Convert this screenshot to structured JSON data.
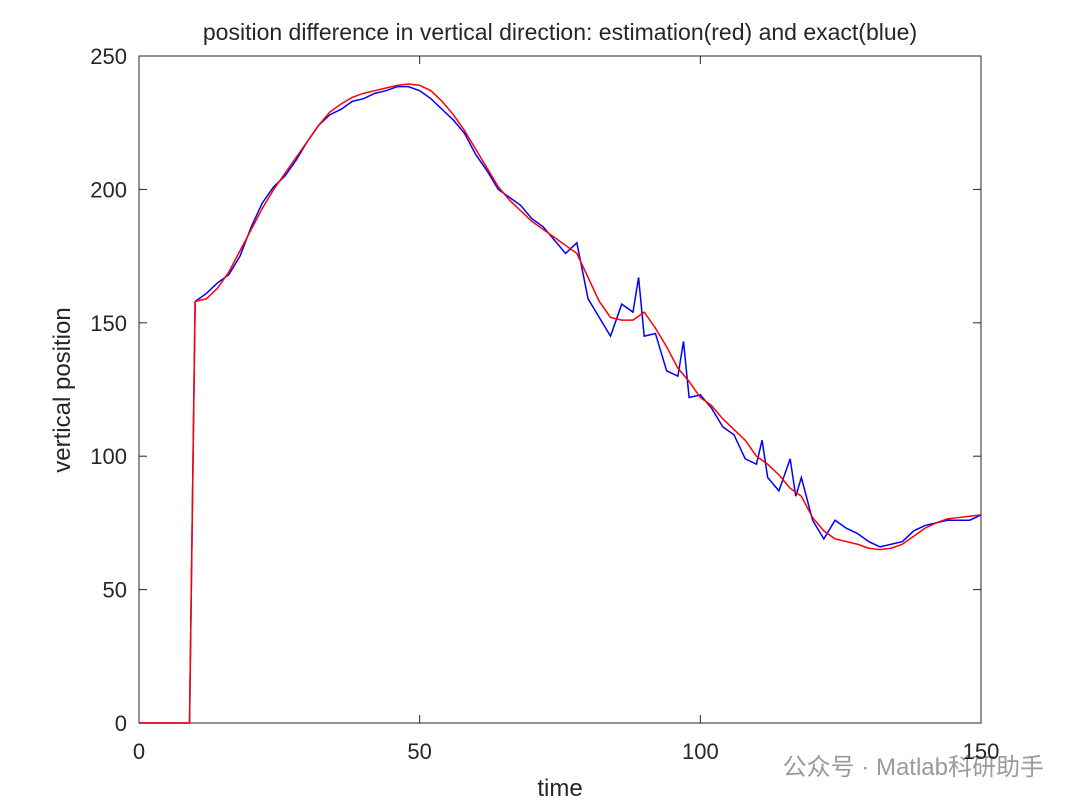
{
  "chart_data": {
    "type": "line",
    "title": "position difference in vertical direction: estimation(red) and exact(blue)",
    "x_label": "time",
    "y_label": "vertical position",
    "xlim": [
      0,
      150
    ],
    "ylim": [
      0,
      250
    ],
    "xticks": [
      0,
      50,
      100,
      150
    ],
    "yticks": [
      0,
      50,
      100,
      150,
      200,
      250
    ],
    "grid": false,
    "series": [
      {
        "color": "#0000ff",
        "x": [
          0,
          2,
          4,
          6,
          8,
          9,
          10,
          12,
          14,
          16,
          18,
          20,
          22,
          24,
          26,
          28,
          30,
          32,
          34,
          36,
          38,
          40,
          42,
          44,
          46,
          48,
          50,
          52,
          54,
          56,
          58,
          60,
          62,
          64,
          66,
          68,
          70,
          72,
          74,
          76,
          78,
          80,
          82,
          84,
          86,
          88,
          89,
          90,
          92,
          94,
          96,
          97,
          98,
          100,
          102,
          104,
          106,
          108,
          110,
          111,
          112,
          114,
          116,
          117,
          118,
          120,
          122,
          124,
          126,
          128,
          130,
          132,
          134,
          136,
          138,
          140,
          142,
          144,
          146,
          148,
          150
        ],
        "values": [
          0,
          0,
          0,
          0,
          0,
          0,
          158,
          161,
          165,
          168,
          175,
          186,
          195,
          201,
          205,
          211,
          218,
          224,
          228,
          230,
          233,
          234,
          236,
          237,
          238.5,
          238.5,
          237,
          234,
          230,
          226,
          221,
          213,
          207,
          200,
          197,
          194,
          189,
          186,
          181,
          176,
          180,
          159,
          152,
          145,
          157,
          154,
          167,
          145,
          146,
          132,
          130,
          143,
          122,
          123,
          118,
          111,
          108,
          99,
          97,
          106,
          92,
          87,
          99,
          85,
          92,
          76,
          69,
          76,
          73,
          71,
          68,
          66,
          67,
          68,
          72,
          74,
          75,
          76,
          76,
          76,
          78
        ]
      },
      {
        "color": "#ff0000",
        "x": [
          0,
          2,
          4,
          6,
          8,
          9,
          10,
          12,
          14,
          16,
          18,
          20,
          22,
          24,
          26,
          28,
          30,
          32,
          34,
          36,
          38,
          40,
          42,
          44,
          46,
          48,
          50,
          52,
          54,
          56,
          58,
          60,
          62,
          64,
          66,
          68,
          70,
          72,
          74,
          76,
          78,
          80,
          82,
          84,
          86,
          88,
          90,
          92,
          94,
          96,
          98,
          100,
          102,
          104,
          106,
          108,
          110,
          112,
          114,
          116,
          118,
          120,
          122,
          124,
          126,
          128,
          130,
          132,
          134,
          136,
          138,
          140,
          142,
          144,
          146,
          148,
          150
        ],
        "values": [
          0,
          0,
          0,
          0,
          0,
          0,
          158,
          159,
          163,
          169,
          177,
          185,
          193,
          200,
          206,
          212,
          218,
          224,
          229,
          232,
          234.5,
          236,
          237,
          238,
          239,
          239.5,
          239,
          237,
          233,
          228,
          222,
          215,
          208,
          201,
          196,
          192,
          188,
          185,
          182,
          179,
          176,
          167,
          158,
          152,
          151,
          151,
          154,
          148,
          141,
          133,
          128,
          122,
          119,
          114,
          110,
          106,
          100,
          97,
          93,
          88,
          85,
          77,
          72,
          69,
          68,
          67,
          65.5,
          65,
          65.5,
          67,
          70,
          73,
          75,
          76.5,
          77,
          77.5,
          78
        ]
      }
    ],
    "annotations": [
      "公众号 · Matlab科研助手"
    ]
  }
}
